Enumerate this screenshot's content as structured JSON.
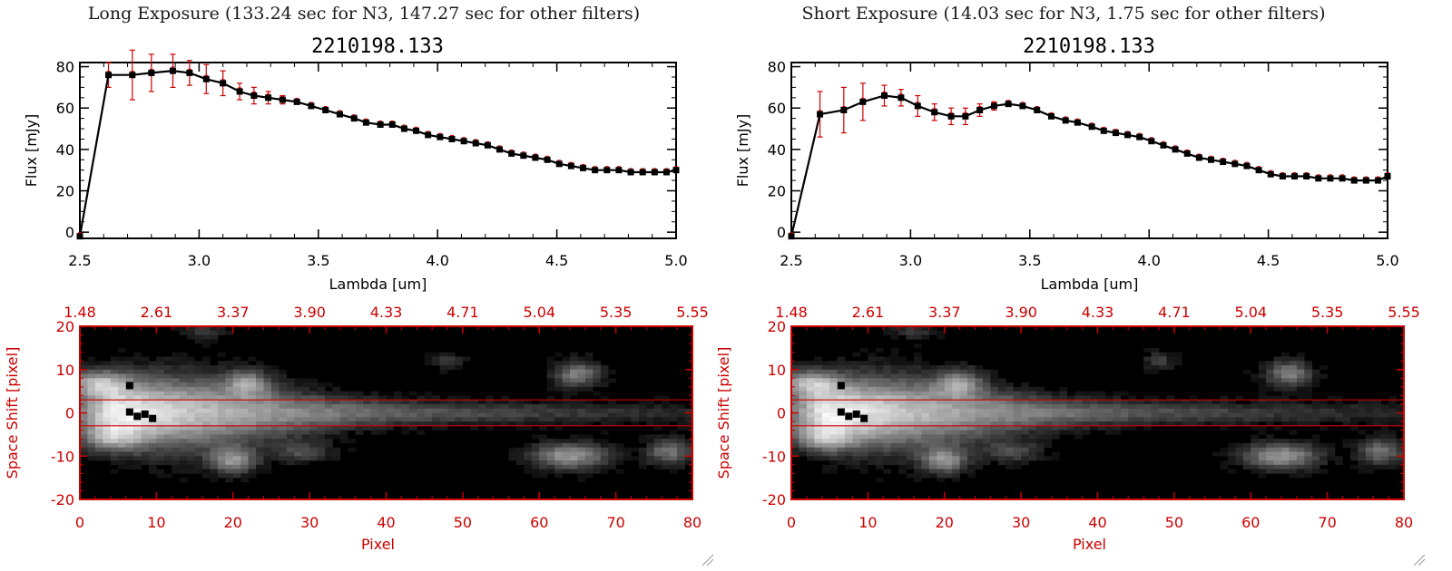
{
  "panels": [
    {
      "title": "Long Exposure (133.24 sec for N3, 147.27 sec for other filters)",
      "spectrum_title": "2210198.133",
      "image_panel": {
        "xlabel": "Pixel",
        "ylabel": "Space Shift [pixel]"
      }
    },
    {
      "title": "Short Exposure (14.03 sec for N3, 1.75 sec for other filters)",
      "spectrum_title": "2210198.133",
      "image_panel": {
        "xlabel": "Pixel",
        "ylabel": "Space Shift [pixel]"
      }
    }
  ],
  "colors": {
    "red": "#cc0000",
    "line": "#000000",
    "marker": "#000000",
    "errorbar": "#cc0000"
  },
  "chart_data": [
    {
      "type": "line",
      "title": "2210198.133",
      "xlabel": "Lambda [um]",
      "ylabel": "Flux [mJy]",
      "xlim": [
        2.5,
        5.0
      ],
      "ylim": [
        -3,
        82
      ],
      "xticks": [
        "2.5",
        "3.0",
        "3.5",
        "4.0",
        "4.5",
        "5.0"
      ],
      "yticks": [
        "0",
        "20",
        "40",
        "60",
        "80"
      ],
      "series": [
        {
          "x": [
            2.5,
            2.62,
            2.72,
            2.8,
            2.89,
            2.96,
            3.03,
            3.1,
            3.17,
            3.23,
            3.29,
            3.35,
            3.41,
            3.47,
            3.53,
            3.59,
            3.65,
            3.7,
            3.76,
            3.81,
            3.86,
            3.91,
            3.96,
            4.01,
            4.06,
            4.11,
            4.16,
            4.21,
            4.26,
            4.31,
            4.36,
            4.41,
            4.46,
            4.51,
            4.56,
            4.61,
            4.66,
            4.71,
            4.76,
            4.81,
            4.86,
            4.91,
            4.96,
            5.0
          ],
          "y": [
            -2,
            76,
            76,
            77,
            78,
            77,
            74,
            72,
            68,
            66,
            65,
            64,
            63,
            61,
            59,
            57,
            55,
            53,
            52,
            52,
            50,
            49,
            47,
            46,
            45,
            44,
            43,
            42,
            40,
            38,
            37,
            36,
            35,
            33,
            32,
            31,
            30,
            30,
            30,
            29,
            29,
            29,
            29,
            30
          ],
          "err": [
            0,
            6,
            12,
            9,
            8,
            6,
            7,
            6,
            4,
            4,
            3,
            2,
            1,
            1,
            1,
            1,
            1,
            1,
            1,
            1,
            1,
            1,
            1,
            1,
            1,
            1,
            1,
            1,
            1,
            1,
            1,
            1,
            1,
            1,
            1,
            1,
            1,
            1,
            1,
            1,
            1,
            1,
            1,
            1
          ]
        }
      ],
      "image": {
        "xlim": [
          0,
          80
        ],
        "ylim": [
          -20,
          20
        ],
        "xticks": [
          "0",
          "10",
          "20",
          "30",
          "40",
          "50",
          "60",
          "70",
          "80"
        ],
        "yticks": [
          "20",
          "10",
          "0",
          "-10",
          "-20"
        ],
        "top_ticks": [
          "1.48",
          "2.61",
          "3.37",
          "3.90",
          "4.33",
          "4.71",
          "5.04",
          "5.35",
          "5.55"
        ],
        "box_lines_y": [
          3,
          -3
        ],
        "xlabel": "Pixel",
        "ylabel": "Space Shift [pixel]"
      }
    },
    {
      "type": "line",
      "title": "2210198.133",
      "xlabel": "Lambda [um]",
      "ylabel": "Flux [mJy]",
      "xlim": [
        2.5,
        5.0
      ],
      "ylim": [
        -3,
        82
      ],
      "xticks": [
        "2.5",
        "3.0",
        "3.5",
        "4.0",
        "4.5",
        "5.0"
      ],
      "yticks": [
        "0",
        "20",
        "40",
        "60",
        "80"
      ],
      "series": [
        {
          "x": [
            2.5,
            2.62,
            2.72,
            2.8,
            2.89,
            2.96,
            3.03,
            3.1,
            3.17,
            3.23,
            3.29,
            3.35,
            3.41,
            3.47,
            3.53,
            3.59,
            3.65,
            3.7,
            3.76,
            3.81,
            3.86,
            3.91,
            3.96,
            4.01,
            4.06,
            4.11,
            4.16,
            4.21,
            4.26,
            4.31,
            4.36,
            4.41,
            4.46,
            4.51,
            4.56,
            4.61,
            4.66,
            4.71,
            4.76,
            4.81,
            4.86,
            4.91,
            4.96,
            5.0
          ],
          "y": [
            -2,
            57,
            59,
            63,
            66,
            65,
            61,
            58,
            56,
            56,
            59,
            61,
            62,
            61,
            59,
            56,
            54,
            53,
            51,
            49,
            48,
            47,
            46,
            44,
            42,
            40,
            38,
            36,
            35,
            34,
            33,
            32,
            30,
            28,
            27,
            27,
            27,
            26,
            26,
            26,
            25,
            25,
            25,
            27
          ],
          "err": [
            0,
            11,
            11,
            9,
            5,
            4,
            5,
            4,
            4,
            4,
            3,
            2,
            1,
            1,
            1,
            1,
            1,
            1,
            1,
            1,
            1,
            1,
            1,
            1,
            1,
            1,
            1,
            1,
            1,
            1,
            1,
            1,
            1,
            1,
            1,
            1,
            1,
            1,
            1,
            1,
            1,
            1,
            1,
            1
          ]
        }
      ],
      "image": {
        "xlim": [
          0,
          80
        ],
        "ylim": [
          -20,
          20
        ],
        "xticks": [
          "0",
          "10",
          "20",
          "30",
          "40",
          "50",
          "60",
          "70",
          "80"
        ],
        "yticks": [
          "20",
          "10",
          "0",
          "-10",
          "-20"
        ],
        "top_ticks": [
          "1.48",
          "2.61",
          "3.37",
          "3.90",
          "4.33",
          "4.71",
          "5.04",
          "5.35",
          "5.55"
        ],
        "box_lines_y": [
          3,
          -3
        ],
        "xlabel": "Pixel",
        "ylabel": "Space Shift [pixel]"
      }
    }
  ]
}
